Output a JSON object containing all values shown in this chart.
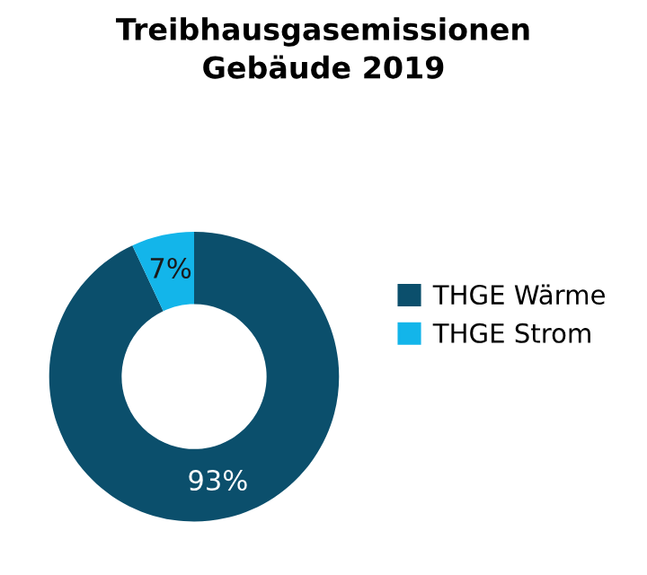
{
  "chart_data": {
    "type": "donut",
    "title": "Treibhausgasemissionen\nGebäude 2019",
    "categories": [
      "THGE Wärme",
      "THGE Strom"
    ],
    "values": [
      93,
      7
    ],
    "colors": [
      "#0b4f6c",
      "#13b5ea"
    ],
    "value_labels": [
      "93%",
      "7%"
    ],
    "legend": "right"
  }
}
